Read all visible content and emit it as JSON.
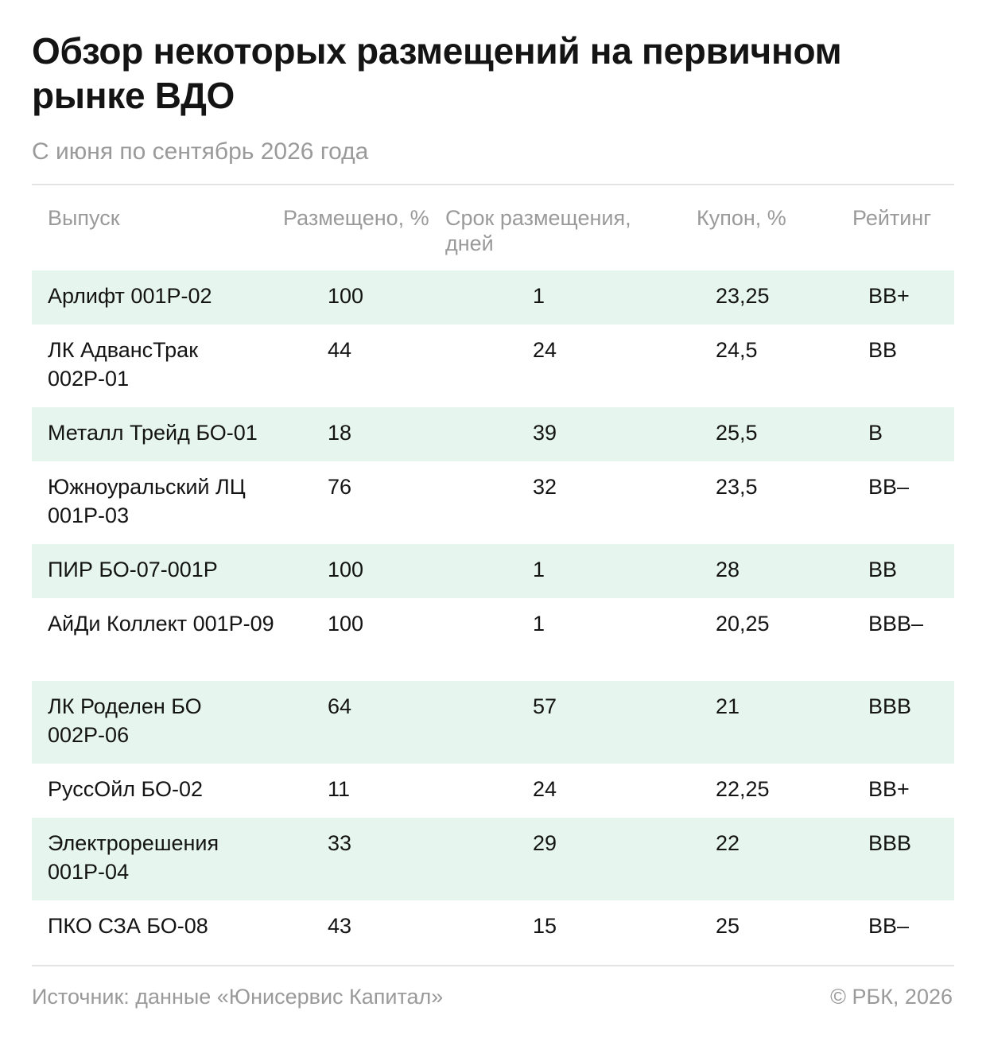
{
  "title": "Обзор некоторых размещений на первичном рынке ВДО",
  "subtitle": "С июня по сентябрь 2026 года",
  "colors": {
    "stripe": "#e6f6ee",
    "muted_text": "#9a9a9a",
    "text": "#141414",
    "rule": "#e3e3e3"
  },
  "table": {
    "headers": {
      "issue": "Выпуск",
      "placed": "Размещено, %",
      "term": "Срок размещения, дней",
      "coupon": "Купон, %",
      "rating": "Рейтинг"
    },
    "rows": [
      {
        "issue": "Арлифт 001Р-02",
        "placed": "100",
        "term": "1",
        "coupon": "23,25",
        "rating": "BB+"
      },
      {
        "issue": "ЛК АдвансТрак 002Р-01",
        "placed": "44",
        "term": "24",
        "coupon": "24,5",
        "rating": "BB"
      },
      {
        "issue": "Металл Трейд БО-01",
        "placed": "18",
        "term": "39",
        "coupon": "25,5",
        "rating": "B"
      },
      {
        "issue": "Южноуральский ЛЦ 001Р-03",
        "placed": "76",
        "term": "32",
        "coupon": "23,5",
        "rating": "BB–"
      },
      {
        "issue": "ПИР БО-07-001Р",
        "placed": "100",
        "term": "1",
        "coupon": "28",
        "rating": "BB"
      },
      {
        "issue": "АйДи Коллект 001Р-09",
        "placed": "100",
        "term": "1",
        "coupon": "20,25",
        "rating": "BBB–"
      },
      {
        "issue": "ЛК Роделен БО 002Р-06",
        "placed": "64",
        "term": "57",
        "coupon": "21",
        "rating": "BBB"
      },
      {
        "issue": "РуссОйл БО-02",
        "placed": "11",
        "term": "24",
        "coupon": "22,25",
        "rating": "BB+"
      },
      {
        "issue": "Электрорешения 001Р-04",
        "placed": "33",
        "term": "29",
        "coupon": "22",
        "rating": "BBB"
      },
      {
        "issue": "ПКО СЗА БО-08",
        "placed": "43",
        "term": "15",
        "coupon": "25",
        "rating": "BB–"
      }
    ]
  },
  "footer": {
    "source": "Источник: данные «Юнисервис Капитал»",
    "copyright": "© РБК, 2026"
  }
}
